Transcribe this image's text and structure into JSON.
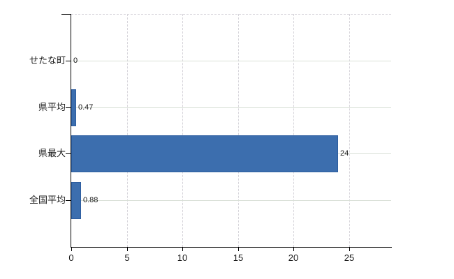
{
  "chart_data": {
    "type": "bar",
    "orientation": "horizontal",
    "title": "",
    "xlabel": "",
    "ylabel": "",
    "categories": [
      "せたな町",
      "県平均",
      "県最大",
      "全国平均"
    ],
    "values": [
      0,
      0.47,
      24,
      0.88
    ],
    "value_labels": [
      "0",
      "0.47",
      "24",
      "0.88"
    ],
    "xticks": [
      0,
      5,
      10,
      15,
      20,
      25
    ],
    "xtick_labels": [
      "0",
      "5",
      "10",
      "15",
      "20",
      "25"
    ],
    "xlim": [
      0,
      28.8
    ],
    "grid": {
      "horizontal_style": "solid",
      "vertical_style": "dashed",
      "top_border_style": "dashed"
    },
    "legend": null,
    "colors": {
      "bar_fill": "#3c6eae",
      "bar_border": "#2d5d9f",
      "axis": "#000000",
      "h_grid": "#d9e0d7",
      "v_grid": "#d6d4da",
      "text": "#1a1a1a",
      "background": "#ffffff"
    }
  }
}
